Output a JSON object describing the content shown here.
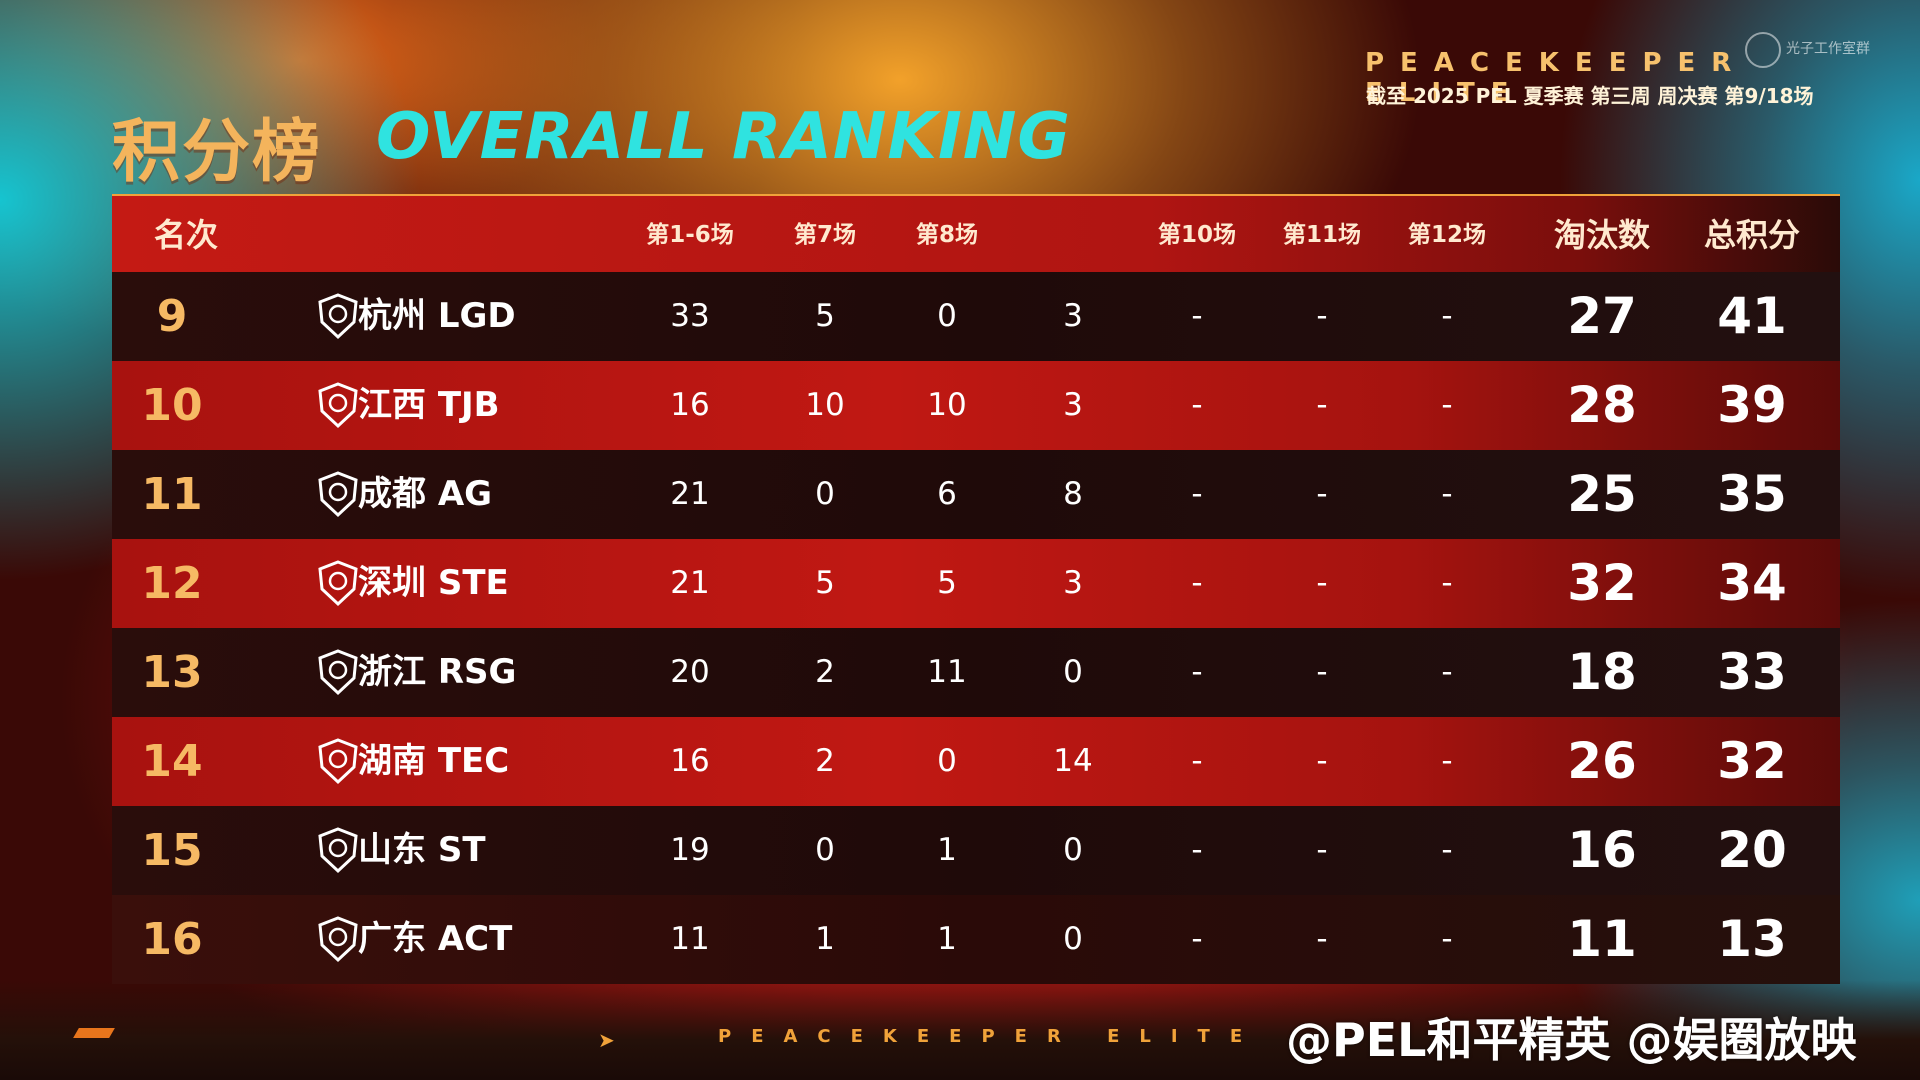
{
  "header": {
    "title_cn": "积分榜",
    "title_en": "OVERALL RANKING",
    "brand": "PEACEKEEPER ELITE",
    "subtitle": "截至 2025 PEL 夏季赛 第三周 周决赛 第9/18场",
    "watermark": "光子工作室群"
  },
  "table": {
    "columns": {
      "rank": "名次",
      "g1_6": "第1-6场",
      "g7": "第7场",
      "g8": "第8场",
      "g9": "",
      "g10": "第10场",
      "g11": "第11场",
      "g12": "第12场",
      "elims": "淘汰数",
      "total": "总积分"
    },
    "rows": [
      {
        "rank": "9",
        "team": "杭州 LGD",
        "logo": "lgd-logo-icon",
        "g1_6": "33",
        "g7": "5",
        "g8": "0",
        "g9": "3",
        "g10": "-",
        "g11": "-",
        "g12": "-",
        "elims": "27",
        "total": "41"
      },
      {
        "rank": "10",
        "team": "江西 TJB",
        "logo": "tjb-logo-icon",
        "g1_6": "16",
        "g7": "10",
        "g8": "10",
        "g9": "3",
        "g10": "-",
        "g11": "-",
        "g12": "-",
        "elims": "28",
        "total": "39"
      },
      {
        "rank": "11",
        "team": "成都 AG",
        "logo": "ag-logo-icon",
        "g1_6": "21",
        "g7": "0",
        "g8": "6",
        "g9": "8",
        "g10": "-",
        "g11": "-",
        "g12": "-",
        "elims": "25",
        "total": "35"
      },
      {
        "rank": "12",
        "team": "深圳 STE",
        "logo": "ste-logo-icon",
        "g1_6": "21",
        "g7": "5",
        "g8": "5",
        "g9": "3",
        "g10": "-",
        "g11": "-",
        "g12": "-",
        "elims": "32",
        "total": "34"
      },
      {
        "rank": "13",
        "team": "浙江 RSG",
        "logo": "rsg-logo-icon",
        "g1_6": "20",
        "g7": "2",
        "g8": "11",
        "g9": "0",
        "g10": "-",
        "g11": "-",
        "g12": "-",
        "elims": "18",
        "total": "33"
      },
      {
        "rank": "14",
        "team": "湖南 TEC",
        "logo": "tec-logo-icon",
        "g1_6": "16",
        "g7": "2",
        "g8": "0",
        "g9": "14",
        "g10": "-",
        "g11": "-",
        "g12": "-",
        "elims": "26",
        "total": "32"
      },
      {
        "rank": "15",
        "team": "山东 ST",
        "logo": "st-logo-icon",
        "g1_6": "19",
        "g7": "0",
        "g8": "1",
        "g9": "0",
        "g10": "-",
        "g11": "-",
        "g12": "-",
        "elims": "16",
        "total": "20"
      },
      {
        "rank": "16",
        "team": "广东 ACT",
        "logo": "act-logo-icon",
        "g1_6": "11",
        "g7": "1",
        "g8": "1",
        "g9": "0",
        "g10": "-",
        "g11": "-",
        "g12": "-",
        "elims": "11",
        "total": "13"
      }
    ]
  },
  "footer": {
    "brand": "PEACEKEEPER ELITE",
    "weibo": "@PEL和平精英 @娱圈放映"
  },
  "colors": {
    "accent_gold": "#f6b964",
    "accent_cyan": "#2fe3e0",
    "row_red": "#c01813",
    "row_dark": "#1f0a09"
  }
}
